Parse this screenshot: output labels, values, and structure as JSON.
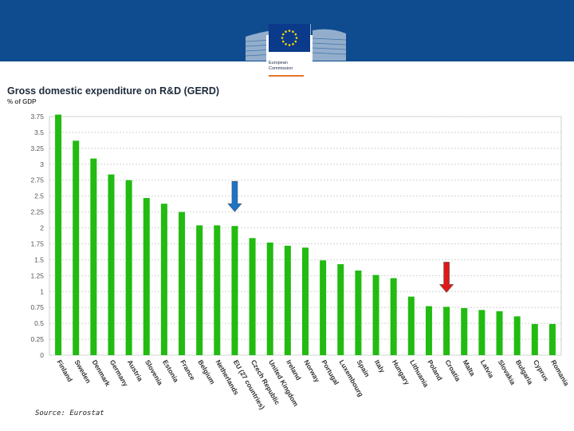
{
  "header": {
    "logo_line1": "European",
    "logo_line2": "Commission",
    "background": "#0f4c8f"
  },
  "footer": {
    "source": "Source: Eurostat"
  },
  "chart_data": {
    "type": "bar",
    "title": "Gross domestic expenditure on R&D (GERD)",
    "subtitle": "% of GDP",
    "xlabel": "",
    "ylabel": "% of GDP",
    "ylim": [
      0,
      3.75
    ],
    "grid": true,
    "yticks": [
      "0",
      "0.25",
      "0.5",
      "0.75",
      "1",
      "1.25",
      "1.5",
      "1.75",
      "2",
      "2.25",
      "2.5",
      "2.75",
      "3",
      "3.25",
      "3.5",
      "3.75"
    ],
    "categories": [
      "Finland",
      "Sweden",
      "Denmark",
      "Germany",
      "Austria",
      "Slovenia",
      "Estonia",
      "France",
      "Belgium",
      "Netherlands",
      "EU (27 countries)",
      "Czech Republic",
      "United Kingdom",
      "Ireland",
      "Norway",
      "Portugal",
      "Luxembourg",
      "Spain",
      "Italy",
      "Hungary",
      "Lithuania",
      "Poland",
      "Croatia",
      "Malta",
      "Latvia",
      "Slovakia",
      "Bulgaria",
      "Cyprus",
      "Romania"
    ],
    "values": [
      3.78,
      3.37,
      3.09,
      2.84,
      2.75,
      2.47,
      2.38,
      2.25,
      2.04,
      2.04,
      2.03,
      1.84,
      1.77,
      1.72,
      1.69,
      1.49,
      1.43,
      1.33,
      1.26,
      1.21,
      0.92,
      0.77,
      0.76,
      0.74,
      0.71,
      0.69,
      0.61,
      0.49,
      0.49
    ],
    "bar_color": "#22bb11",
    "annotations": [
      {
        "type": "arrow",
        "category": "EU (27 countries)",
        "color": "#1a74c9"
      },
      {
        "type": "arrow",
        "category": "Croatia",
        "color": "#e01818"
      }
    ]
  }
}
